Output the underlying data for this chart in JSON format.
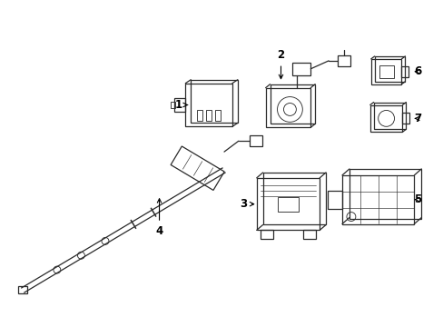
{
  "background_color": "#ffffff",
  "line_color": "#2a2a2a",
  "label_color": "#000000",
  "fig_w": 4.89,
  "fig_h": 3.6,
  "dpi": 100
}
